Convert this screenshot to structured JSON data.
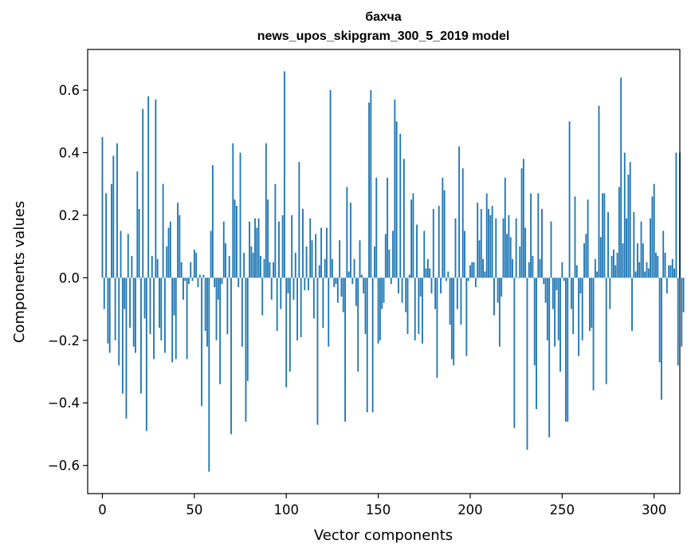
{
  "chart_data": {
    "type": "bar",
    "title": "бахча",
    "subtitle": "news_upos_skipgram_300_5_2019 model",
    "xlabel": "Vector components",
    "ylabel": "Components values",
    "xlim": [
      -8,
      314
    ],
    "ylim": [
      -0.69,
      0.73
    ],
    "xticks": [
      0,
      50,
      100,
      150,
      200,
      250,
      300
    ],
    "yticks": [
      -0.6,
      -0.4,
      -0.2,
      0.0,
      0.2,
      0.4,
      0.6
    ],
    "xtick_labels": [
      "0",
      "50",
      "100",
      "150",
      "200",
      "250",
      "300"
    ],
    "ytick_labels": [
      "−0.6",
      "−0.4",
      "−0.2",
      "0.0",
      "0.2",
      "0.4",
      "0.6"
    ],
    "bar_color": "#1f77b4",
    "grid": false,
    "legend": "none",
    "values": [
      0.45,
      -0.1,
      0.27,
      -0.21,
      -0.24,
      0.3,
      0.39,
      -0.2,
      0.43,
      -0.28,
      0.15,
      -0.37,
      -0.1,
      -0.45,
      0.14,
      -0.16,
      0.07,
      -0.22,
      -0.24,
      0.34,
      0.22,
      -0.37,
      0.54,
      -0.13,
      -0.49,
      0.58,
      -0.18,
      0.07,
      -0.26,
      0.57,
      0.06,
      -0.16,
      -0.2,
      0.3,
      -0.24,
      0.1,
      0.16,
      0.18,
      -0.27,
      -0.12,
      -0.26,
      0.24,
      0.2,
      0.05,
      -0.07,
      -0.01,
      -0.26,
      -0.02,
      0.05,
      -0.01,
      0.09,
      0.08,
      -0.03,
      0.01,
      -0.41,
      0.01,
      -0.17,
      -0.22,
      -0.62,
      0.15,
      0.36,
      -0.03,
      -0.2,
      -0.07,
      -0.34,
      -0.02,
      0.18,
      0.11,
      -0.18,
      0.07,
      -0.5,
      0.43,
      0.25,
      0.23,
      -0.03,
      0.4,
      -0.22,
      0.08,
      -0.46,
      -0.33,
      0.18,
      0.1,
      0.08,
      0.19,
      0.16,
      0.19,
      0.07,
      -0.12,
      0.06,
      0.43,
      0.25,
      0.05,
      -0.07,
      0.05,
      0.3,
      -0.17,
      0.18,
      -0.1,
      0.2,
      0.66,
      -0.35,
      -0.05,
      -0.3,
      0.2,
      -0.07,
      0.08,
      -0.2,
      0.37,
      -0.19,
      0.22,
      -0.04,
      0.1,
      -0.04,
      0.19,
      0.12,
      -0.13,
      0.14,
      -0.47,
      0.04,
      0.16,
      -0.16,
      0.06,
      0.16,
      -0.22,
      0.6,
      0.06,
      -0.03,
      -0.02,
      -0.08,
      0.12,
      -0.06,
      -0.11,
      -0.46,
      0.29,
      0.02,
      0.24,
      -0.02,
      0.06,
      -0.09,
      -0.3,
      0.12,
      0.01,
      -0.05,
      -0.18,
      -0.43,
      0.56,
      0.6,
      -0.43,
      0.1,
      0.32,
      -0.21,
      -0.2,
      -0.1,
      -0.08,
      0.14,
      0.32,
      0.09,
      -0.02,
      0.15,
      0.57,
      0.5,
      -0.05,
      0.46,
      -0.08,
      0.38,
      -0.11,
      -0.18,
      0.01,
      0.25,
      0.27,
      -0.2,
      0.17,
      -0.18,
      -0.06,
      -0.21,
      0.15,
      0.03,
      0.06,
      0.03,
      -0.05,
      0.22,
      -0.1,
      -0.32,
      0.23,
      -0.05,
      0.32,
      0.28,
      -0.01,
      0.02,
      -0.15,
      -0.26,
      -0.28,
      0.19,
      -0.1,
      0.42,
      -0.15,
      0.35,
      0.15,
      -0.25,
      -0.01,
      0.04,
      0.05,
      0.05,
      -0.03,
      0.24,
      0.12,
      0.22,
      0.06,
      0.02,
      0.27,
      0.22,
      0.2,
      0.23,
      -0.12,
      0.19,
      -0.08,
      -0.22,
      -0.06,
      0.19,
      0.32,
      0.14,
      0.2,
      0.13,
      0.06,
      -0.48,
      0.19,
      0.0,
      0.1,
      0.35,
      0.38,
      0.16,
      -0.55,
      0.05,
      0.27,
      0.07,
      -0.28,
      -0.42,
      0.27,
      0.06,
      0.22,
      -0.02,
      -0.08,
      -0.2,
      -0.51,
      0.18,
      -0.1,
      -0.22,
      -0.04,
      -0.2,
      -0.3,
      0.05,
      -0.01,
      -0.46,
      -0.46,
      0.5,
      -0.1,
      -0.18,
      0.26,
      0.04,
      -0.25,
      -0.05,
      -0.2,
      0.11,
      0.14,
      0.25,
      -0.17,
      -0.16,
      -0.36,
      0.06,
      0.02,
      0.55,
      0.13,
      0.27,
      0.27,
      -0.34,
      0.21,
      -0.1,
      0.07,
      0.09,
      0.04,
      0.08,
      0.29,
      0.64,
      0.11,
      0.4,
      0.19,
      0.33,
      0.37,
      -0.17,
      0.21,
      0.02,
      0.11,
      0.05,
      0.18,
      0.11,
      0.02,
      0.05,
      0.03,
      0.19,
      0.26,
      0.3,
      0.08,
      0.07,
      -0.27,
      -0.39,
      0.15,
      0.08,
      -0.05,
      0.04,
      0.04,
      0.06,
      0.03,
      0.4,
      -0.28,
      0.4,
      -0.22,
      -0.11
    ]
  }
}
